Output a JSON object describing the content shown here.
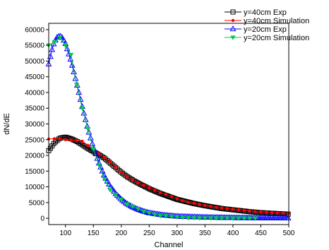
{
  "chart_data": {
    "type": "scatter",
    "title": "",
    "xlabel": "Channel",
    "ylabel": "dN/dE",
    "xlim": [
      70,
      500
    ],
    "ylim": [
      -2000,
      62000
    ],
    "xticks": [
      100,
      150,
      200,
      250,
      300,
      350,
      400,
      450,
      500
    ],
    "yticks": [
      0,
      5000,
      10000,
      15000,
      20000,
      25000,
      30000,
      35000,
      40000,
      45000,
      50000,
      55000,
      60000
    ],
    "grid": false,
    "legend_position": "top-right",
    "series": [
      {
        "name": "y=40cm Exp",
        "color": "#000000",
        "marker": "square-open",
        "x_range": [
          70,
          500
        ],
        "x_step": 3,
        "keypoints": [
          [
            70,
            21500
          ],
          [
            80,
            24000
          ],
          [
            90,
            25500
          ],
          [
            100,
            25800
          ],
          [
            110,
            25300
          ],
          [
            120,
            24500
          ],
          [
            130,
            23400
          ],
          [
            140,
            22200
          ],
          [
            150,
            21200
          ],
          [
            160,
            20200
          ],
          [
            170,
            19100
          ],
          [
            180,
            17600
          ],
          [
            190,
            16100
          ],
          [
            200,
            14600
          ],
          [
            210,
            13300
          ],
          [
            220,
            12200
          ],
          [
            230,
            11200
          ],
          [
            240,
            10300
          ],
          [
            250,
            9400
          ],
          [
            270,
            7900
          ],
          [
            300,
            6000
          ],
          [
            330,
            4700
          ],
          [
            350,
            4000
          ],
          [
            380,
            3100
          ],
          [
            400,
            2700
          ],
          [
            430,
            2100
          ],
          [
            450,
            1800
          ],
          [
            480,
            1500
          ],
          [
            500,
            1300
          ]
        ]
      },
      {
        "name": "y=40cm  Simulation",
        "color": "#ff0000",
        "marker": "dot",
        "x": [
          70,
          80,
          90,
          100,
          110,
          120,
          130,
          140,
          150,
          160,
          170,
          180,
          190,
          200,
          210,
          220,
          230,
          240,
          250,
          260,
          270,
          280,
          290,
          300,
          310,
          320,
          330,
          340,
          350,
          360,
          370,
          380,
          390,
          400,
          410,
          420,
          430,
          440,
          450,
          460,
          470,
          480,
          490,
          500
        ],
        "y": [
          25200,
          25300,
          25200,
          25000,
          24900,
          24800,
          24500,
          23200,
          21800,
          20400,
          19300,
          17900,
          16300,
          14600,
          13300,
          12200,
          11200,
          10500,
          9700,
          9000,
          8200,
          7600,
          6900,
          6200,
          5600,
          5100,
          4800,
          4400,
          4100,
          3800,
          3500,
          3300,
          3100,
          2900,
          2700,
          2500,
          2300,
          2100,
          2000,
          1900,
          1800,
          1700,
          1600,
          1500
        ]
      },
      {
        "name": "y=20cm  Exp",
        "color": "#0000ff",
        "marker": "triangle-open",
        "x_range": [
          70,
          500
        ],
        "x_step": 3,
        "keypoints": [
          [
            70,
            49000
          ],
          [
            75,
            53000
          ],
          [
            80,
            56000
          ],
          [
            85,
            57500
          ],
          [
            90,
            58000
          ],
          [
            95,
            57300
          ],
          [
            100,
            55500
          ],
          [
            110,
            50000
          ],
          [
            120,
            43000
          ],
          [
            130,
            35500
          ],
          [
            140,
            28500
          ],
          [
            150,
            22500
          ],
          [
            160,
            17500
          ],
          [
            170,
            13300
          ],
          [
            180,
            10200
          ],
          [
            190,
            7800
          ],
          [
            200,
            6000
          ],
          [
            210,
            4600
          ],
          [
            220,
            3600
          ],
          [
            230,
            2800
          ],
          [
            240,
            2200
          ],
          [
            250,
            1700
          ],
          [
            275,
            1000
          ],
          [
            300,
            600
          ],
          [
            350,
            300
          ],
          [
            400,
            150
          ],
          [
            450,
            80
          ],
          [
            500,
            50
          ]
        ]
      },
      {
        "name": "y=20cm  Simulation",
        "color": "#00cc44",
        "marker": "triangle-down",
        "x": [
          70,
          80,
          90,
          100,
          110,
          120,
          130,
          140,
          150,
          160,
          170,
          180,
          190,
          200,
          210,
          220,
          230,
          240,
          250,
          260,
          270,
          280,
          290,
          300,
          310,
          320,
          330,
          340,
          350,
          360,
          370,
          380,
          390,
          400,
          410,
          420,
          430,
          440
        ],
        "y": [
          55000,
          56000,
          57500,
          55000,
          52000,
          42500,
          35000,
          28500,
          22000,
          17000,
          12500,
          9000,
          7500,
          6000,
          4500,
          3800,
          3000,
          2100,
          1700,
          1200,
          800,
          800,
          500,
          400,
          250,
          150,
          100,
          80,
          60,
          50,
          40,
          30,
          30,
          20,
          20,
          10,
          10,
          10
        ]
      }
    ]
  }
}
